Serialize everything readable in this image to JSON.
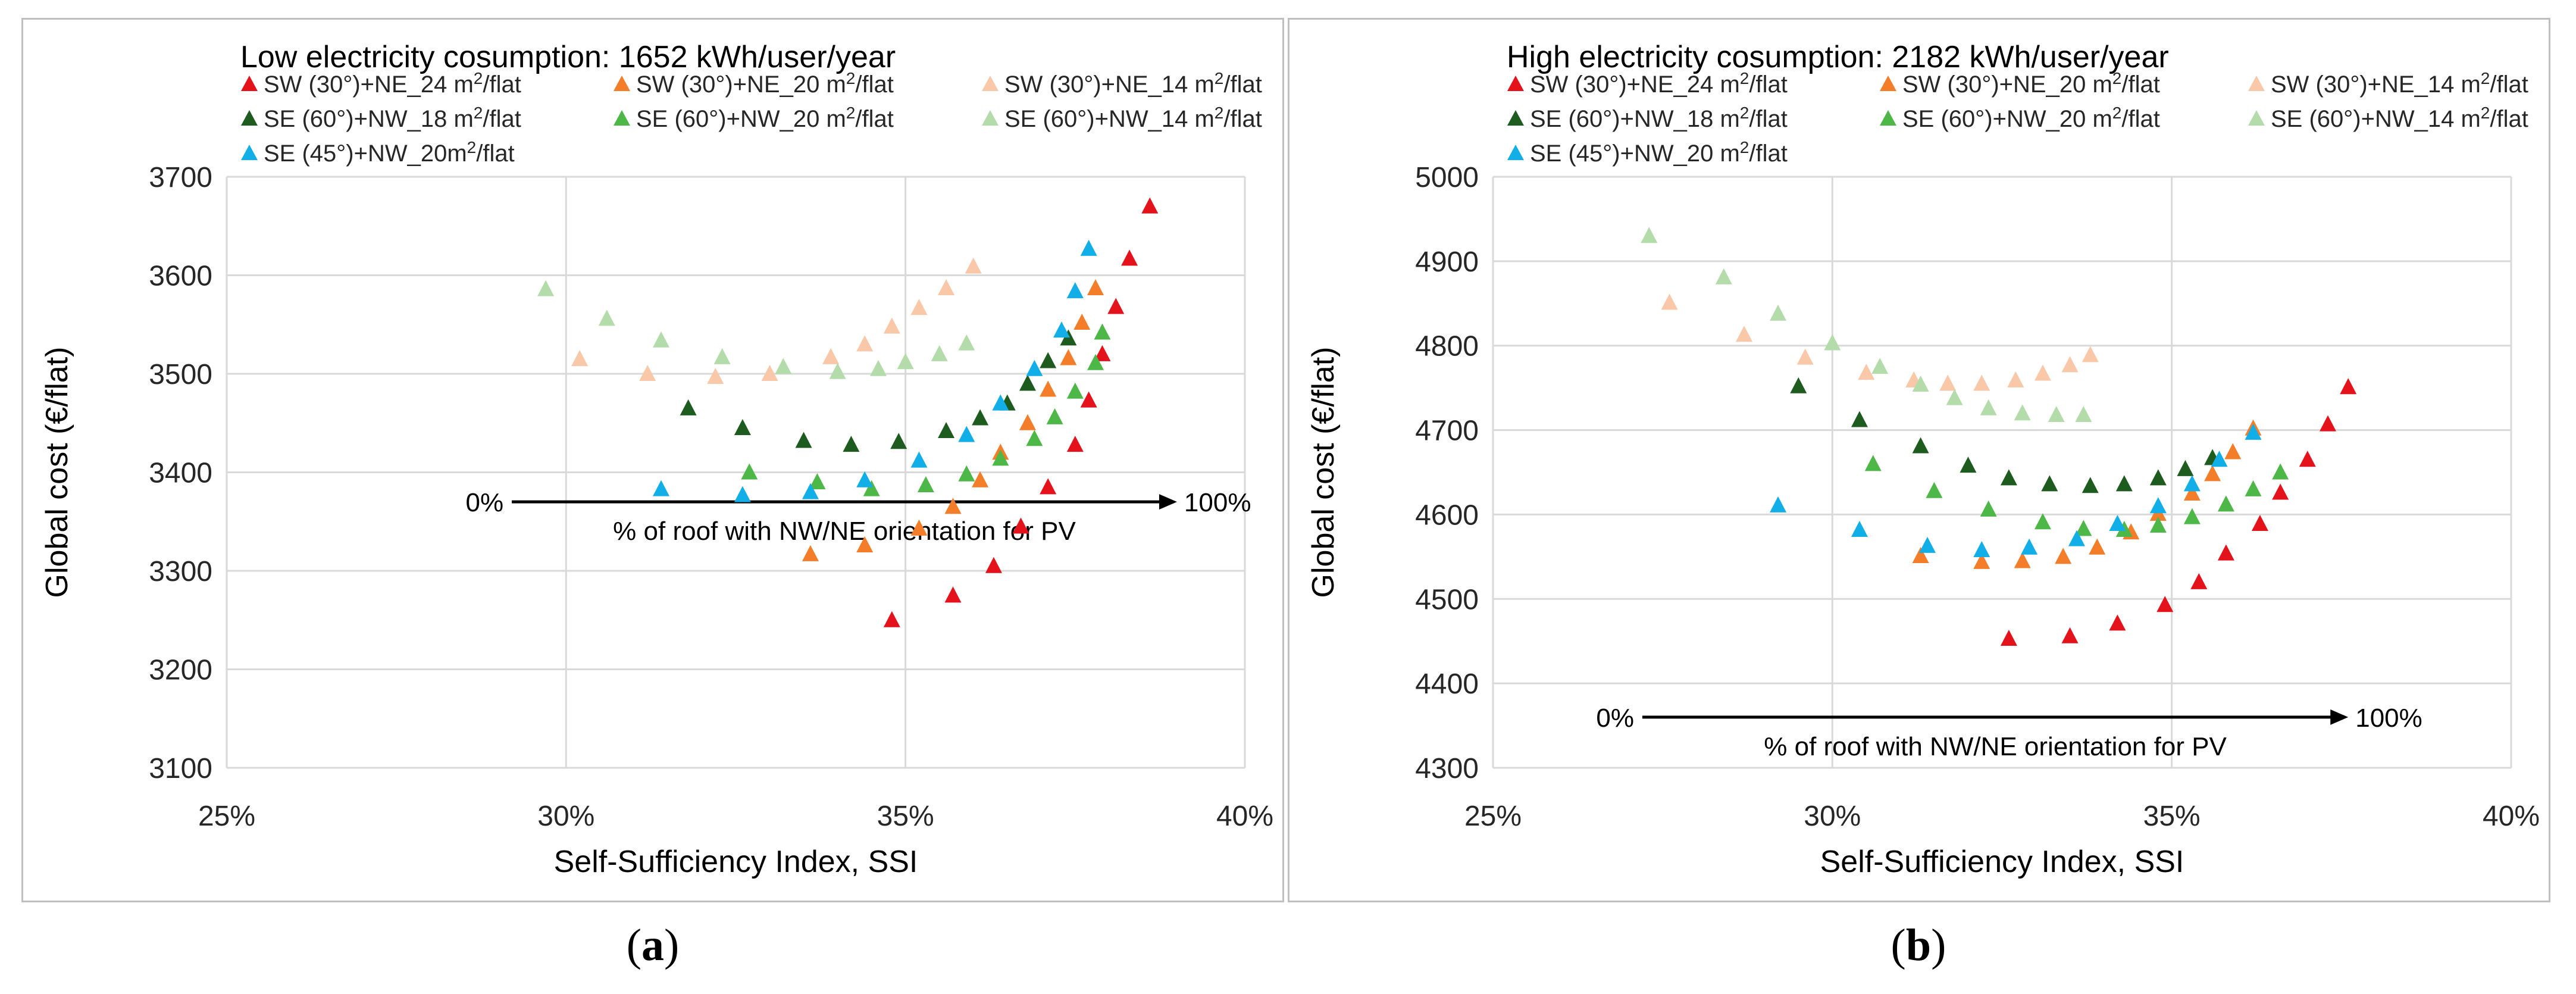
{
  "captions": [
    "a",
    "b"
  ],
  "colors": {
    "red": "#e3121b",
    "orange": "#f47d2a",
    "peach": "#f8c8a8",
    "darkgreen": "#1e5b1e",
    "green": "#4db848",
    "lightgreen": "#b4dcaa",
    "blue": "#12aee8",
    "grid": "#d9d9d9",
    "axis": "#000000",
    "text": "#262626"
  },
  "chart_data": [
    {
      "type": "scatter",
      "title": "Low electricity cosumption: 1652 kWh/user/year",
      "xlabel": "Self-Sufficiency Index, SSI",
      "ylabel": "Global cost (€/flat)",
      "xlim": [
        0.25,
        0.4
      ],
      "ylim": [
        3100,
        3700
      ],
      "xticks": [
        0.25,
        0.3,
        0.35,
        0.4
      ],
      "xtick_labels": [
        "25%",
        "30%",
        "35%",
        "40%"
      ],
      "yticks": [
        3100,
        3200,
        3300,
        3400,
        3500,
        3600,
        3700
      ],
      "ytick_labels": [
        "3100",
        "3200",
        "3300",
        "3400",
        "3500",
        "3600",
        "3700"
      ],
      "annotation": {
        "text": "% of roof with NW/NE orientation for PV",
        "start_label": "0%",
        "end_label": "100%",
        "x_start": 0.292,
        "x_end": 0.39,
        "y": 3370
      },
      "legend_position": "top",
      "series": [
        {
          "name": "SW (30°)+NE_24 m²/flat",
          "name_main": "SW (30°)+NE_24 m",
          "name_sup": "2",
          "name_tail": "/flat",
          "color": "red",
          "x": [
            0.348,
            0.357,
            0.363,
            0.367,
            0.371,
            0.375,
            0.377,
            0.379,
            0.381,
            0.383,
            0.386
          ],
          "y": [
            3250,
            3275,
            3305,
            3345,
            3385,
            3428,
            3473,
            3520,
            3568,
            3617,
            3670
          ]
        },
        {
          "name": "SW (30°)+NE_20 m²/flat",
          "name_main": "SW (30°)+NE_20 m",
          "name_sup": "2",
          "name_tail": "/flat",
          "color": "orange",
          "x": [
            0.336,
            0.344,
            0.352,
            0.357,
            0.361,
            0.364,
            0.368,
            0.371,
            0.374,
            0.376,
            0.378
          ],
          "y": [
            3317,
            3326,
            3343,
            3365,
            3392,
            3420,
            3450,
            3484,
            3516,
            3552,
            3587
          ]
        },
        {
          "name": "SW (30°)+NE_14 m²/flat",
          "name_main": "SW (30°)+NE_14 m",
          "name_sup": "2",
          "name_tail": "/flat",
          "color": "peach",
          "x": [
            0.302,
            0.312,
            0.322,
            0.33,
            0.339,
            0.344,
            0.348,
            0.352,
            0.356,
            0.36
          ],
          "y": [
            3515,
            3500,
            3497,
            3500,
            3517,
            3530,
            3548,
            3567,
            3587,
            3609
          ]
        },
        {
          "name": "SE (60°)+NW_18 m²/flat",
          "name_main": "SE (60°)+NW_18 m",
          "name_sup": "2",
          "name_tail": "/flat",
          "color": "darkgreen",
          "x": [
            0.318,
            0.326,
            0.335,
            0.342,
            0.349,
            0.356,
            0.361,
            0.365,
            0.368,
            0.371,
            0.374
          ],
          "y": [
            3465,
            3445,
            3432,
            3428,
            3431,
            3442,
            3455,
            3470,
            3490,
            3513,
            3536
          ]
        },
        {
          "name": "SE (60°)+NW_20 m²/flat",
          "name_main": "SE (60°)+NW_20 m",
          "name_sup": "2",
          "name_tail": "/flat",
          "color": "green",
          "x": [
            0.327,
            0.337,
            0.345,
            0.353,
            0.359,
            0.364,
            0.369,
            0.372,
            0.375,
            0.378,
            0.379
          ],
          "y": [
            3400,
            3390,
            3383,
            3387,
            3398,
            3414,
            3434,
            3456,
            3482,
            3511,
            3542
          ]
        },
        {
          "name": "SE (60°)+NW_14 m²/flat",
          "name_main": "SE (60°)+NW_14 m",
          "name_sup": "2",
          "name_tail": "/flat",
          "color": "lightgreen",
          "x": [
            0.297,
            0.306,
            0.314,
            0.323,
            0.332,
            0.34,
            0.346,
            0.35,
            0.355,
            0.359
          ],
          "y": [
            3586,
            3556,
            3534,
            3517,
            3507,
            3502,
            3505,
            3512,
            3520,
            3531
          ]
        },
        {
          "name": "SE (45°)+NW_20m²/flat",
          "name_main": "SE (45°)+NW_20m",
          "name_sup": "2",
          "name_tail": "/flat",
          "color": "blue",
          "x": [
            0.314,
            0.326,
            0.336,
            0.344,
            0.352,
            0.359,
            0.364,
            0.369,
            0.373,
            0.375,
            0.377
          ],
          "y": [
            3383,
            3377,
            3380,
            3392,
            3412,
            3438,
            3470,
            3505,
            3544,
            3584,
            3627
          ]
        }
      ]
    },
    {
      "type": "scatter",
      "title": "High electricity cosumption: 2182 kWh/user/year",
      "xlabel": "Self-Sufficiency Index, SSI",
      "ylabel": "Global cost (€/flat)",
      "xlim": [
        0.25,
        0.4
      ],
      "ylim": [
        4300,
        5000
      ],
      "xticks": [
        0.25,
        0.3,
        0.35,
        0.4
      ],
      "xtick_labels": [
        "25%",
        "30%",
        "35%",
        "40%"
      ],
      "yticks": [
        4300,
        4400,
        4500,
        4600,
        4700,
        4800,
        4900,
        5000
      ],
      "ytick_labels": [
        "4300",
        "4400",
        "4500",
        "4600",
        "4700",
        "4800",
        "4900",
        "5000"
      ],
      "annotation": {
        "text": "% of roof with NW/NE orientation for PV",
        "start_label": "0%",
        "end_label": "100%",
        "x_start": 0.272,
        "x_end": 0.376,
        "y": 4360
      },
      "legend_position": "top",
      "series": [
        {
          "name": "SW (30°)+NE_24 m²/flat",
          "name_main": "SW (30°)+NE_24 m",
          "name_sup": "2",
          "name_tail": "/flat",
          "color": "red",
          "x": [
            0.326,
            0.335,
            0.342,
            0.349,
            0.354,
            0.358,
            0.363,
            0.366,
            0.37,
            0.373,
            0.376
          ],
          "y": [
            4453,
            4456,
            4471,
            4493,
            4520,
            4554,
            4589,
            4626,
            4665,
            4707,
            4751
          ]
        },
        {
          "name": "SW (30°)+NE_20 m²/flat",
          "name_main": "SW (30°)+NE_20 m",
          "name_sup": "2",
          "name_tail": "/flat",
          "color": "orange",
          "x": [
            0.313,
            0.322,
            0.328,
            0.334,
            0.339,
            0.344,
            0.348,
            0.353,
            0.356,
            0.359,
            0.362
          ],
          "y": [
            4551,
            4544,
            4545,
            4550,
            4561,
            4579,
            4601,
            4625,
            4648,
            4674,
            4702
          ]
        },
        {
          "name": "SW (30°)+NE_14 m²/flat",
          "name_main": "SW (30°)+NE_14 m",
          "name_sup": "2",
          "name_tail": "/flat",
          "color": "peach",
          "x": [
            0.276,
            0.287,
            0.296,
            0.305,
            0.312,
            0.317,
            0.322,
            0.327,
            0.331,
            0.335,
            0.338
          ],
          "y": [
            4851,
            4813,
            4786,
            4768,
            4759,
            4755,
            4755,
            4759,
            4767,
            4777,
            4789
          ]
        },
        {
          "name": "SE (60°)+NW_18 m²/flat",
          "name_main": "SE (60°)+NW_18 m",
          "name_sup": "2",
          "name_tail": "/flat",
          "color": "darkgreen",
          "x": [
            0.295,
            0.304,
            0.313,
            0.32,
            0.326,
            0.332,
            0.338,
            0.343,
            0.348,
            0.352,
            0.356
          ],
          "y": [
            4752,
            4712,
            4681,
            4658,
            4643,
            4636,
            4634,
            4636,
            4643,
            4654,
            4667
          ]
        },
        {
          "name": "SE (60°)+NW_20 m²/flat",
          "name_main": "SE (60°)+NW_20 m",
          "name_sup": "2",
          "name_tail": "/flat",
          "color": "green",
          "x": [
            0.306,
            0.315,
            0.323,
            0.331,
            0.337,
            0.343,
            0.348,
            0.353,
            0.358,
            0.362,
            0.366
          ],
          "y": [
            4660,
            4628,
            4606,
            4591,
            4583,
            4582,
            4587,
            4597,
            4612,
            4630,
            4650
          ]
        },
        {
          "name": "SE (60°)+NW_14 m²/flat",
          "name_main": "SE (60°)+NW_14 m",
          "name_sup": "2",
          "name_tail": "/flat",
          "color": "lightgreen",
          "x": [
            0.273,
            0.284,
            0.292,
            0.3,
            0.307,
            0.313,
            0.318,
            0.323,
            0.328,
            0.333,
            0.337
          ],
          "y": [
            4930,
            4881,
            4838,
            4803,
            4775,
            4754,
            4738,
            4726,
            4720,
            4718,
            4718
          ]
        },
        {
          "name": "SE (45°)+NW_20 m²/flat",
          "name_main": "SE (45°)+NW_20 m",
          "name_sup": "2",
          "name_tail": "/flat",
          "color": "blue",
          "x": [
            0.292,
            0.304,
            0.314,
            0.322,
            0.329,
            0.336,
            0.342,
            0.348,
            0.353,
            0.357,
            0.362
          ],
          "y": [
            4611,
            4582,
            4563,
            4558,
            4561,
            4571,
            4589,
            4610,
            4636,
            4665,
            4697
          ]
        }
      ]
    }
  ]
}
